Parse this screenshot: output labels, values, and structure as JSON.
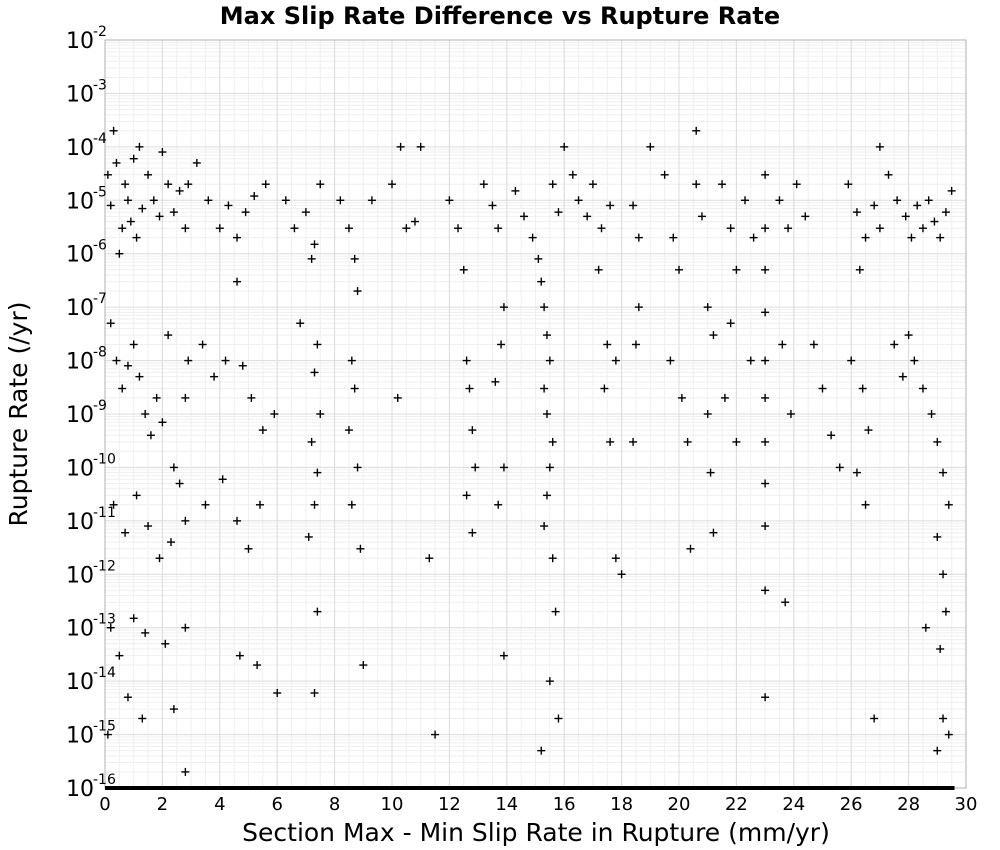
{
  "chart_data": {
    "type": "scatter",
    "title": "Max Slip Rate Difference vs Rupture Rate",
    "xlabel": "Section Max - Min Slip Rate in Rupture (mm/yr)",
    "ylabel": "Rupture Rate (/yr)",
    "xlim": [
      0,
      30
    ],
    "ylim_exponent": [
      -16,
      -2
    ],
    "y_scale": "log",
    "grid": true,
    "marker": "plus",
    "marker_color": "#000000",
    "x_ticks": [
      "0",
      "2",
      "4",
      "6",
      "8",
      "10",
      "12",
      "14",
      "16",
      "18",
      "20",
      "22",
      "24",
      "26",
      "28",
      "30"
    ],
    "y_ticks": [
      {
        "base": "10",
        "exp": "-2"
      },
      {
        "base": "10",
        "exp": "-3"
      },
      {
        "base": "10",
        "exp": "-4"
      },
      {
        "base": "10",
        "exp": "-5"
      },
      {
        "base": "10",
        "exp": "-6"
      },
      {
        "base": "10",
        "exp": "-7"
      },
      {
        "base": "10",
        "exp": "-8"
      },
      {
        "base": "10",
        "exp": "-9"
      },
      {
        "base": "10",
        "exp": "-10"
      },
      {
        "base": "10",
        "exp": "-11"
      },
      {
        "base": "10",
        "exp": "-12"
      },
      {
        "base": "10",
        "exp": "-13"
      },
      {
        "base": "10",
        "exp": "-14"
      },
      {
        "base": "10",
        "exp": "-15"
      },
      {
        "base": "10",
        "exp": "-16"
      }
    ],
    "points": [
      [
        0.1,
        3e-05
      ],
      [
        0.2,
        8e-06
      ],
      [
        0.3,
        0.0002
      ],
      [
        0.4,
        5e-05
      ],
      [
        0.5,
        1e-06
      ],
      [
        0.6,
        3e-06
      ],
      [
        0.7,
        2e-05
      ],
      [
        0.8,
        1e-05
      ],
      [
        0.9,
        4e-06
      ],
      [
        1.0,
        6e-05
      ],
      [
        1.1,
        2e-06
      ],
      [
        1.2,
        0.0001
      ],
      [
        1.3,
        7e-06
      ],
      [
        1.5,
        3e-05
      ],
      [
        1.7,
        1e-05
      ],
      [
        1.9,
        5e-06
      ],
      [
        2.0,
        8e-05
      ],
      [
        2.2,
        2e-05
      ],
      [
        2.4,
        6e-06
      ],
      [
        2.6,
        1.5e-05
      ],
      [
        2.8,
        3e-06
      ],
      [
        2.9,
        2e-05
      ],
      [
        0.2,
        5e-08
      ],
      [
        0.4,
        1e-08
      ],
      [
        0.6,
        3e-09
      ],
      [
        0.8,
        8e-09
      ],
      [
        1.0,
        2e-08
      ],
      [
        1.2,
        5e-09
      ],
      [
        1.4,
        1e-09
      ],
      [
        1.6,
        4e-10
      ],
      [
        1.8,
        2e-09
      ],
      [
        2.0,
        7e-10
      ],
      [
        2.2,
        3e-08
      ],
      [
        2.4,
        1e-10
      ],
      [
        2.6,
        5e-11
      ],
      [
        2.8,
        2e-09
      ],
      [
        2.9,
        1e-08
      ],
      [
        0.3,
        2e-11
      ],
      [
        0.7,
        6e-12
      ],
      [
        1.1,
        3e-11
      ],
      [
        1.5,
        8e-12
      ],
      [
        1.9,
        2e-12
      ],
      [
        2.3,
        4e-12
      ],
      [
        2.8,
        1e-11
      ],
      [
        0.2,
        1e-13
      ],
      [
        0.5,
        3e-14
      ],
      [
        1.0,
        1.5e-13
      ],
      [
        1.4,
        8e-14
      ],
      [
        2.1,
        5e-14
      ],
      [
        2.8,
        1e-13
      ],
      [
        0.1,
        1e-15
      ],
      [
        0.8,
        5e-15
      ],
      [
        1.3,
        2e-15
      ],
      [
        2.4,
        3e-15
      ],
      [
        2.8,
        2e-16
      ],
      [
        3.2,
        5e-05
      ],
      [
        3.6,
        1e-05
      ],
      [
        4.0,
        3e-06
      ],
      [
        4.3,
        8e-06
      ],
      [
        4.6,
        2e-06
      ],
      [
        4.9,
        6e-06
      ],
      [
        5.2,
        1.2e-05
      ],
      [
        5.6,
        2e-05
      ],
      [
        3.4,
        2e-08
      ],
      [
        3.8,
        5e-09
      ],
      [
        4.2,
        1e-08
      ],
      [
        4.6,
        3e-07
      ],
      [
        4.8,
        8e-09
      ],
      [
        5.1,
        2e-09
      ],
      [
        5.5,
        5e-10
      ],
      [
        5.9,
        1e-09
      ],
      [
        3.5,
        2e-11
      ],
      [
        4.1,
        6e-11
      ],
      [
        4.6,
        1e-11
      ],
      [
        5.0,
        3e-12
      ],
      [
        5.4,
        2e-11
      ],
      [
        4.7,
        3e-14
      ],
      [
        5.3,
        2e-14
      ],
      [
        6.0,
        6e-15
      ],
      [
        6.3,
        1e-05
      ],
      [
        6.6,
        3e-06
      ],
      [
        7.0,
        6e-06
      ],
      [
        7.3,
        1.5e-06
      ],
      [
        7.5,
        2e-05
      ],
      [
        7.2,
        8e-07
      ],
      [
        6.8,
        5e-08
      ],
      [
        7.4,
        2e-08
      ],
      [
        7.3,
        6e-09
      ],
      [
        7.5,
        1e-09
      ],
      [
        7.2,
        3e-10
      ],
      [
        7.4,
        8e-11
      ],
      [
        7.3,
        2e-11
      ],
      [
        7.1,
        5e-12
      ],
      [
        7.4,
        2e-13
      ],
      [
        7.3,
        6e-15
      ],
      [
        8.2,
        1e-05
      ],
      [
        8.5,
        3e-06
      ],
      [
        8.7,
        8e-07
      ],
      [
        8.8,
        2e-07
      ],
      [
        8.6,
        1e-08
      ],
      [
        8.7,
        3e-09
      ],
      [
        8.5,
        5e-10
      ],
      [
        8.8,
        1e-10
      ],
      [
        8.6,
        2e-11
      ],
      [
        8.9,
        3e-12
      ],
      [
        9.0,
        2e-14
      ],
      [
        9.3,
        1e-05
      ],
      [
        10.0,
        2e-05
      ],
      [
        10.3,
        0.0001
      ],
      [
        10.5,
        3e-06
      ],
      [
        10.2,
        2e-09
      ],
      [
        10.8,
        4e-06
      ],
      [
        11.0,
        0.0001
      ],
      [
        11.3,
        2e-12
      ],
      [
        11.5,
        1e-15
      ],
      [
        12.0,
        1e-05
      ],
      [
        12.3,
        3e-06
      ],
      [
        12.5,
        5e-07
      ],
      [
        12.6,
        1e-08
      ],
      [
        12.7,
        3e-09
      ],
      [
        12.8,
        5e-10
      ],
      [
        12.9,
        1e-10
      ],
      [
        12.6,
        3e-11
      ],
      [
        12.8,
        6e-12
      ],
      [
        13.2,
        2e-05
      ],
      [
        13.5,
        8e-06
      ],
      [
        13.7,
        3e-06
      ],
      [
        13.9,
        1e-07
      ],
      [
        13.8,
        2e-08
      ],
      [
        13.6,
        4e-09
      ],
      [
        13.9,
        1e-10
      ],
      [
        13.7,
        2e-11
      ],
      [
        13.9,
        3e-14
      ],
      [
        14.3,
        1.5e-05
      ],
      [
        14.6,
        5e-06
      ],
      [
        14.9,
        2e-06
      ],
      [
        15.1,
        8e-07
      ],
      [
        15.2,
        3e-07
      ],
      [
        15.3,
        1e-07
      ],
      [
        15.4,
        3e-08
      ],
      [
        15.5,
        1e-08
      ],
      [
        15.3,
        3e-09
      ],
      [
        15.4,
        1e-09
      ],
      [
        15.6,
        3e-10
      ],
      [
        15.5,
        1e-10
      ],
      [
        15.4,
        3e-11
      ],
      [
        15.3,
        8e-12
      ],
      [
        15.6,
        2e-12
      ],
      [
        15.7,
        2e-13
      ],
      [
        15.5,
        1e-14
      ],
      [
        15.8,
        2e-15
      ],
      [
        15.2,
        5e-16
      ],
      [
        15.6,
        2e-05
      ],
      [
        15.8,
        6e-06
      ],
      [
        16.0,
        0.0001
      ],
      [
        16.3,
        3e-05
      ],
      [
        16.5,
        1e-05
      ],
      [
        16.8,
        5e-06
      ],
      [
        17.0,
        2e-05
      ],
      [
        17.3,
        3e-06
      ],
      [
        17.6,
        8e-06
      ],
      [
        17.2,
        5e-07
      ],
      [
        17.5,
        2e-08
      ],
      [
        17.8,
        1e-08
      ],
      [
        17.4,
        3e-09
      ],
      [
        17.6,
        3e-10
      ],
      [
        17.8,
        2e-12
      ],
      [
        18.0,
        1e-12
      ],
      [
        18.4,
        8e-06
      ],
      [
        18.6,
        2e-06
      ],
      [
        18.6,
        1e-07
      ],
      [
        18.5,
        2e-08
      ],
      [
        18.4,
        3e-10
      ],
      [
        19.0,
        0.0001
      ],
      [
        19.5,
        3e-05
      ],
      [
        19.8,
        2e-06
      ],
      [
        20.0,
        5e-07
      ],
      [
        19.7,
        1e-08
      ],
      [
        20.1,
        2e-09
      ],
      [
        20.3,
        3e-10
      ],
      [
        20.4,
        3e-12
      ],
      [
        20.6,
        2e-05
      ],
      [
        20.8,
        5e-06
      ],
      [
        20.6,
        0.0002
      ],
      [
        21.0,
        1e-07
      ],
      [
        21.2,
        3e-08
      ],
      [
        21.0,
        1e-09
      ],
      [
        21.1,
        8e-11
      ],
      [
        21.2,
        6e-12
      ],
      [
        21.5,
        2e-05
      ],
      [
        21.8,
        3e-06
      ],
      [
        22.0,
        5e-07
      ],
      [
        21.8,
        5e-08
      ],
      [
        21.6,
        2e-09
      ],
      [
        22.0,
        3e-10
      ],
      [
        22.3,
        1e-05
      ],
      [
        22.6,
        2e-06
      ],
      [
        22.5,
        1e-08
      ],
      [
        23.0,
        3e-05
      ],
      [
        23.0,
        3e-06
      ],
      [
        23.0,
        5e-07
      ],
      [
        23.0,
        8e-08
      ],
      [
        23.0,
        1e-08
      ],
      [
        23.0,
        2e-09
      ],
      [
        23.0,
        3e-10
      ],
      [
        23.0,
        5e-11
      ],
      [
        23.0,
        8e-12
      ],
      [
        23.0,
        5e-13
      ],
      [
        23.0,
        5e-15
      ],
      [
        23.5,
        1e-05
      ],
      [
        23.8,
        3e-06
      ],
      [
        23.6,
        2e-08
      ],
      [
        23.9,
        1e-09
      ],
      [
        23.7,
        3e-13
      ],
      [
        24.1,
        2e-05
      ],
      [
        24.4,
        5e-06
      ],
      [
        24.7,
        2e-08
      ],
      [
        25.0,
        3e-09
      ],
      [
        25.3,
        4e-10
      ],
      [
        25.6,
        1e-10
      ],
      [
        25.9,
        2e-05
      ],
      [
        26.2,
        6e-06
      ],
      [
        26.5,
        2e-06
      ],
      [
        26.8,
        8e-06
      ],
      [
        27.0,
        3e-06
      ],
      [
        26.3,
        5e-07
      ],
      [
        26.0,
        1e-08
      ],
      [
        26.4,
        3e-09
      ],
      [
        26.6,
        5e-10
      ],
      [
        26.2,
        8e-11
      ],
      [
        26.5,
        2e-11
      ],
      [
        26.8,
        2e-15
      ],
      [
        27.0,
        0.0001
      ],
      [
        27.3,
        3e-05
      ],
      [
        27.6,
        1e-05
      ],
      [
        27.9,
        5e-06
      ],
      [
        28.1,
        2e-06
      ],
      [
        28.3,
        8e-06
      ],
      [
        28.5,
        3e-06
      ],
      [
        28.7,
        1e-05
      ],
      [
        28.9,
        4e-06
      ],
      [
        29.1,
        2e-06
      ],
      [
        29.3,
        6e-06
      ],
      [
        29.5,
        1.5e-05
      ],
      [
        27.5,
        2e-08
      ],
      [
        27.8,
        5e-09
      ],
      [
        28.2,
        1e-08
      ],
      [
        28.5,
        3e-09
      ],
      [
        28.8,
        1e-09
      ],
      [
        29.0,
        3e-10
      ],
      [
        29.2,
        8e-11
      ],
      [
        29.4,
        2e-11
      ],
      [
        29.0,
        5e-12
      ],
      [
        29.2,
        1e-12
      ],
      [
        29.3,
        2e-13
      ],
      [
        29.1,
        4e-14
      ],
      [
        29.2,
        2e-15
      ],
      [
        28.6,
        1e-13
      ],
      [
        28.0,
        3e-08
      ],
      [
        29.4,
        1e-15
      ],
      [
        29.0,
        5e-16
      ]
    ],
    "floor_row": {
      "y": 1e-16,
      "x_range": [
        0,
        29.6
      ]
    }
  }
}
